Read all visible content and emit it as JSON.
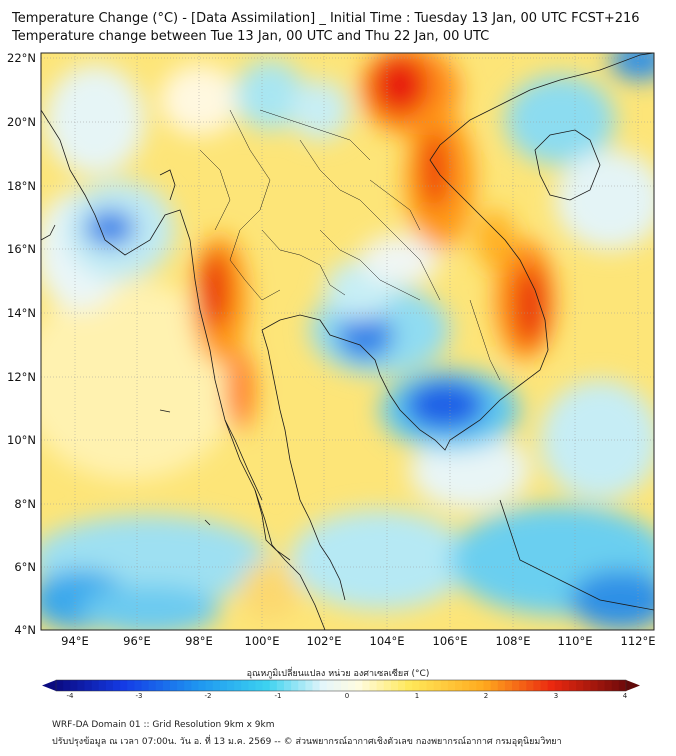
{
  "header": {
    "title_line1": "Temperature Change (°C) - [Data Assimilation] _ Initial Time : Tuesday 13 Jan, 00 UTC FCST+216",
    "title_line2": "Temperature change between Tue 13 Jan, 00 UTC and Thu 22 Jan, 00 UTC"
  },
  "map": {
    "lat_labels": [
      "22°N",
      "20°N",
      "18°N",
      "16°N",
      "14°N",
      "12°N",
      "10°N",
      "8°N",
      "6°N",
      "4°N"
    ],
    "lon_labels": [
      "94°E",
      "96°E",
      "98°E",
      "100°E",
      "102°E",
      "104°E",
      "106°E",
      "108°E",
      "110°E",
      "112°E"
    ],
    "colors": {
      "warm_peak": "#e8140a",
      "warm": "#ff9a10",
      "mild": "#ffd84a",
      "neutral": "#f4f6f8",
      "cool": "#3ed0ee",
      "cold": "#1560e8"
    }
  },
  "colorbar": {
    "title": "อุณหภูมิเปลี่ยนแปลง หน่วย องศาเซลเซียส (°C)",
    "tick_labels": [
      "-4",
      "-3",
      "-2",
      "-1",
      "0",
      "1",
      "2",
      "3",
      "4"
    ],
    "min": -4,
    "max": 4
  },
  "footer": {
    "line1": "WRF-DA Domain 01 :: Grid Resolution 9km x 9km",
    "line2": "ปรับปรุงข้อมูล ณ เวลา 07:00น. วัน อ. ที่ 13 ม.ค. 2569 -- © ส่วนพยากรณ์อากาศเชิงตัวเลข กองพยากรณ์อากาศ กรมอุตุนิยมวิทยา"
  }
}
